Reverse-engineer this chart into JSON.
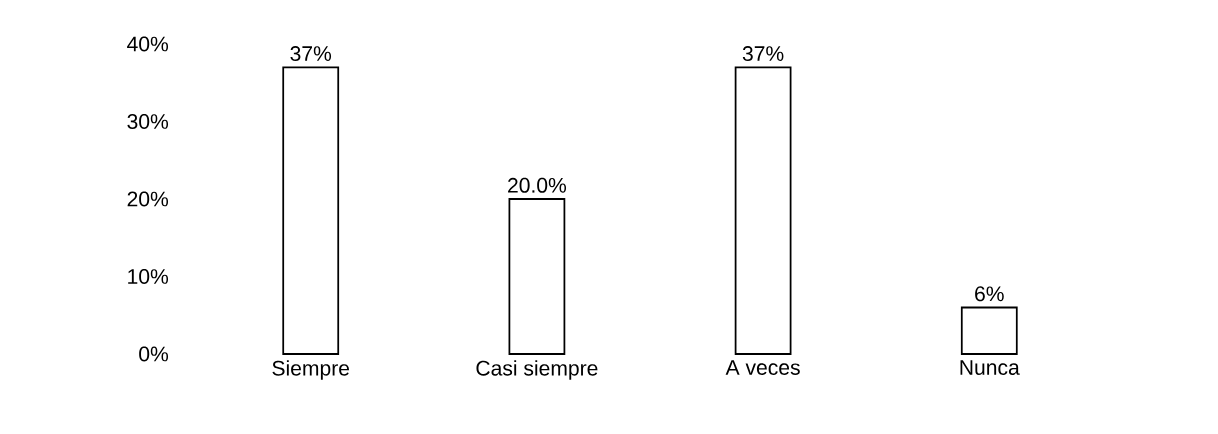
{
  "chart_data": {
    "type": "bar",
    "categories": [
      "Siempre",
      "Casi siempre",
      "A veces",
      "Nunca"
    ],
    "values": [
      37,
      20.0,
      37,
      6
    ],
    "value_labels": [
      "37%",
      "20.0%",
      "37%",
      "6%"
    ],
    "color": "#ffffff",
    "ylim": [
      0,
      40
    ],
    "yticks": [
      {
        "value": 0,
        "label": "0%"
      },
      {
        "value": 10,
        "label": "10%"
      },
      {
        "value": 20,
        "label": "20%"
      },
      {
        "value": 30,
        "label": "30%"
      },
      {
        "value": 40,
        "label": "40%"
      }
    ]
  }
}
